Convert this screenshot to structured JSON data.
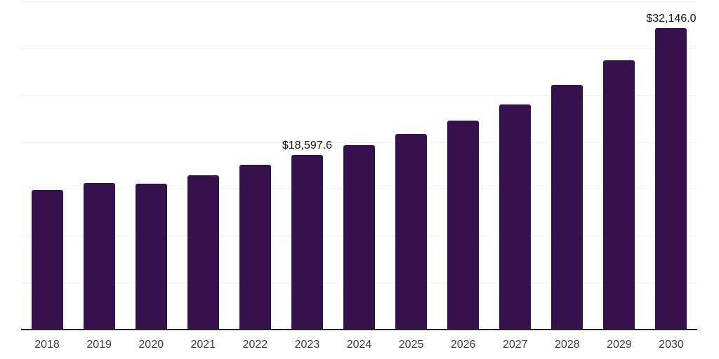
{
  "chart_data": {
    "type": "bar",
    "title": "",
    "xlabel": "",
    "ylabel": "",
    "categories": [
      "2018",
      "2019",
      "2020",
      "2021",
      "2022",
      "2023",
      "2024",
      "2025",
      "2026",
      "2027",
      "2028",
      "2029",
      "2030"
    ],
    "values": [
      14880,
      15630,
      15550,
      16450,
      17570,
      18597.6,
      19670,
      20860,
      22280,
      24000,
      26100,
      28715,
      32146
    ],
    "value_labels": [
      "",
      "",
      "",
      "",
      "",
      "$18,597.6",
      "",
      "",
      "",
      "",
      "",
      "",
      "$32,146.0"
    ],
    "ylim": [
      0,
      35000
    ],
    "gridline_interval": 5000,
    "grid": true,
    "legend": false,
    "colors": {
      "bar": "#35114E",
      "gridline": "#F0F0F0",
      "axis_line": "#242424",
      "tick_label": "#3A3A3A",
      "data_label": "#111111",
      "background": "#FFFFFF"
    }
  }
}
